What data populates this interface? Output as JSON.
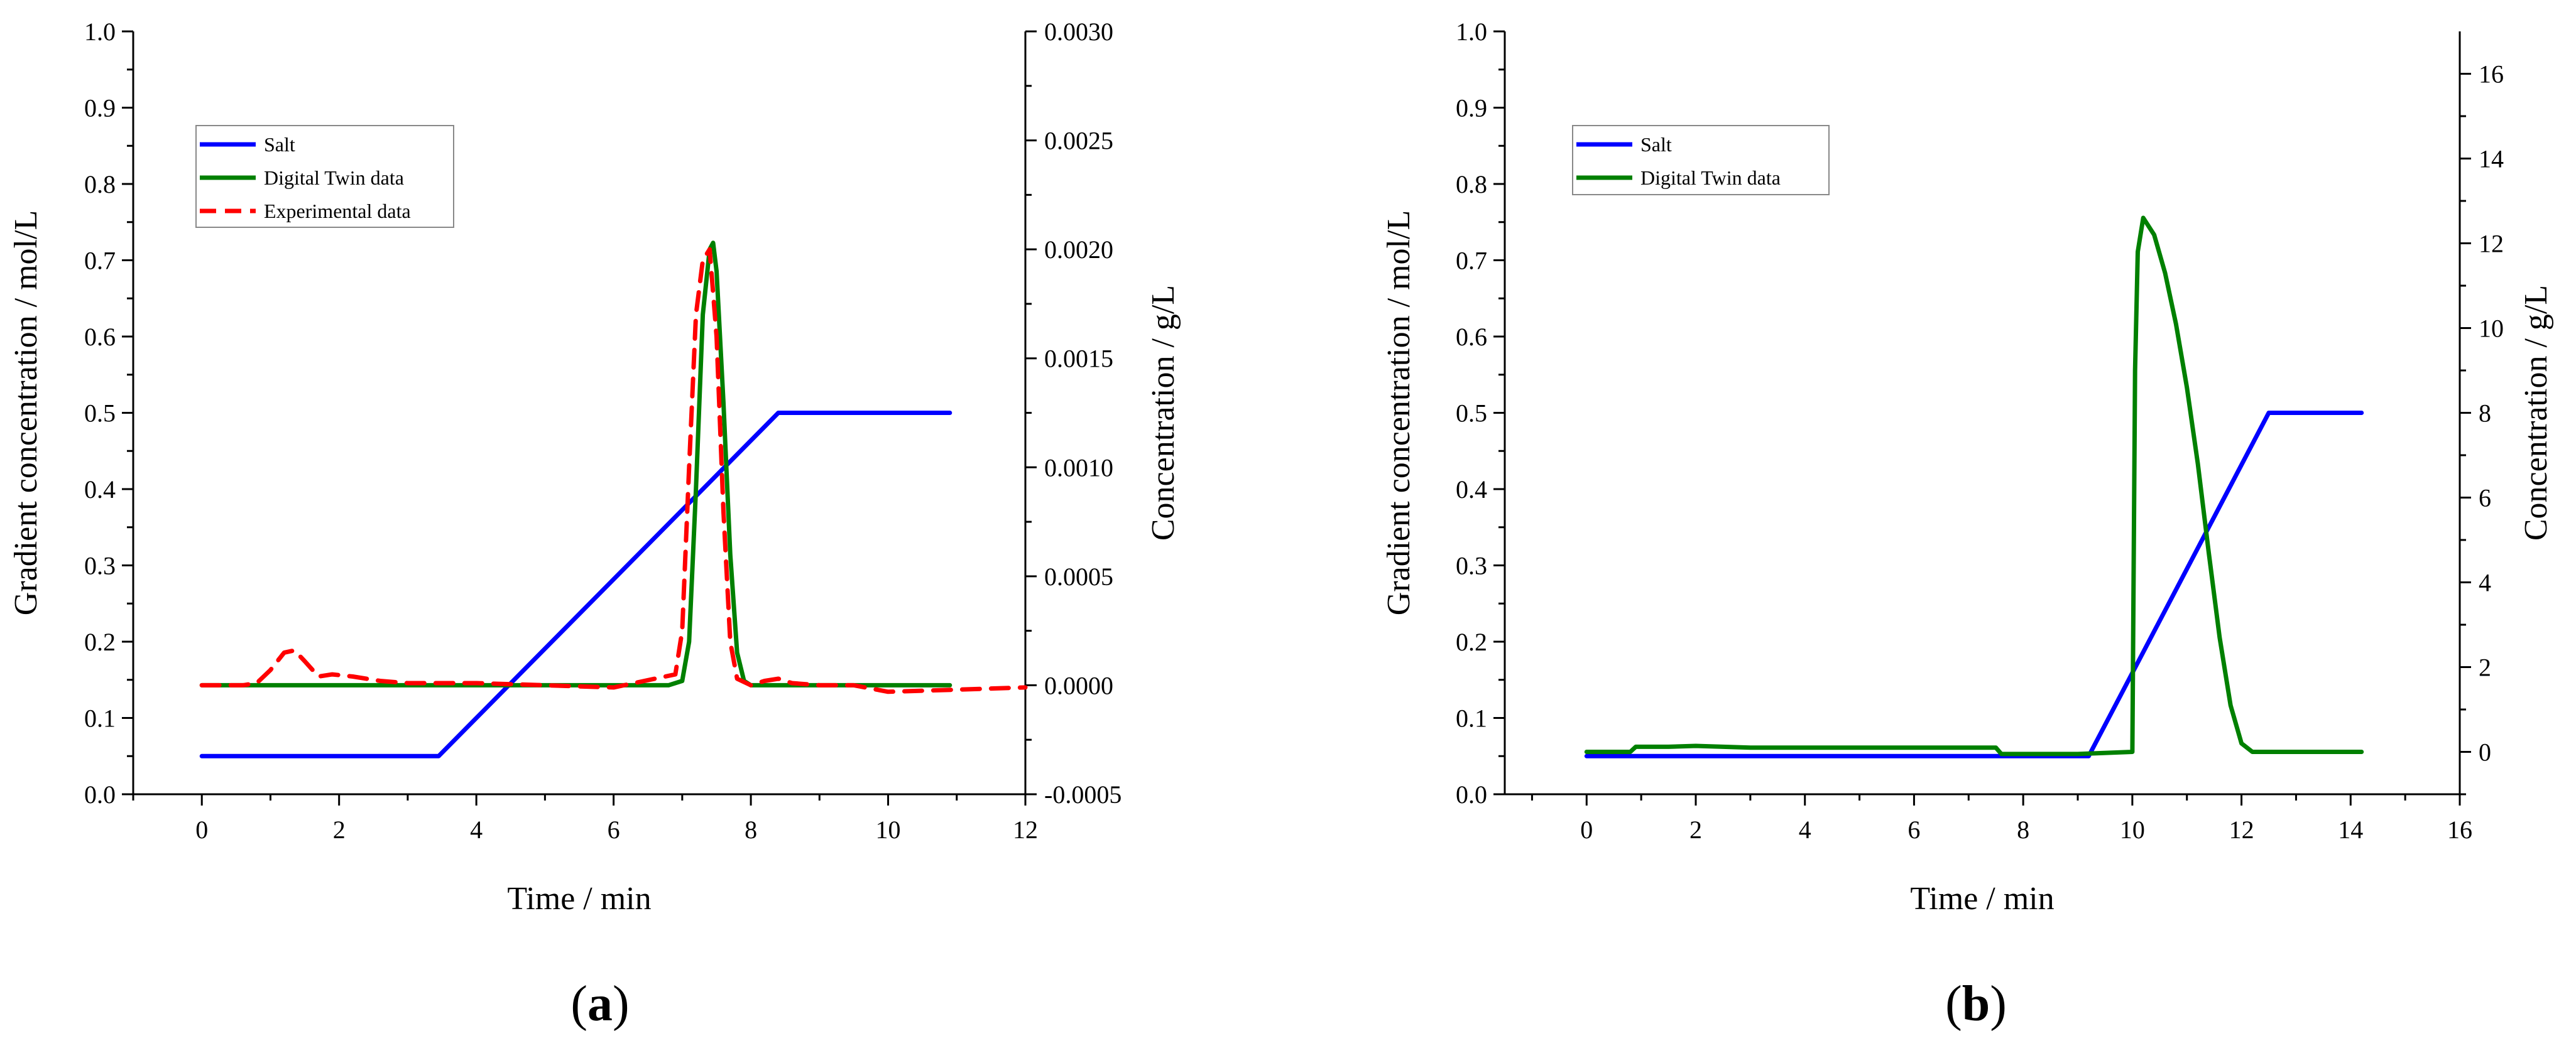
{
  "chart_data": [
    {
      "type": "line",
      "panel_label": "a",
      "xlabel": "Time / min",
      "ylabel": "Gradient concentration / mol/L",
      "y2label": "Concentration / g/L",
      "xlim": [
        -1,
        12
      ],
      "ylim": [
        0,
        1.0
      ],
      "y2lim": [
        -0.0005,
        0.003
      ],
      "x_ticks": [
        "0",
        "2",
        "4",
        "6",
        "8",
        "10",
        "12"
      ],
      "y_ticks": [
        "0.0",
        "0.1",
        "0.2",
        "0.3",
        "0.4",
        "0.5",
        "0.6",
        "0.7",
        "0.8",
        "0.9",
        "1.0"
      ],
      "y2_ticks": [
        "-0.0005",
        "0.0000",
        "0.0005",
        "0.0010",
        "0.0015",
        "0.0020",
        "0.0025",
        "0.0030"
      ],
      "legend_position": "top-left",
      "series": [
        {
          "name": "Salt",
          "axis": "left",
          "color": "#0000ff",
          "style": "solid",
          "x": [
            0,
            3.45,
            8.4,
            10.9
          ],
          "y": [
            0.05,
            0.05,
            0.5,
            0.5
          ]
        },
        {
          "name": "Digital Twin data",
          "axis": "right",
          "color": "#008000",
          "style": "solid",
          "x": [
            0,
            6.8,
            7.0,
            7.1,
            7.2,
            7.3,
            7.4,
            7.45,
            7.5,
            7.6,
            7.7,
            7.8,
            7.9,
            8.0,
            8.5,
            10.9
          ],
          "y": [
            0,
            0,
            2e-05,
            0.0002,
            0.0009,
            0.0017,
            0.002,
            0.00203,
            0.0019,
            0.0013,
            0.0006,
            0.00015,
            2e-05,
            0,
            0,
            0
          ]
        },
        {
          "name": "Experimental data",
          "axis": "right",
          "color": "#ff0000",
          "style": "dashed",
          "x": [
            0,
            0.6,
            0.8,
            1.0,
            1.2,
            1.35,
            1.5,
            1.7,
            1.9,
            2.2,
            2.6,
            3.0,
            4.0,
            5.0,
            6.0,
            6.9,
            7.0,
            7.1,
            7.2,
            7.3,
            7.4,
            7.5,
            7.6,
            7.7,
            7.8,
            8.0,
            8.2,
            8.4,
            8.6,
            9.0,
            9.5,
            10.0,
            11.0,
            12.0
          ],
          "y": [
            0,
            0,
            1e-05,
            7e-05,
            0.00015,
            0.00016,
            0.00011,
            4e-05,
            5e-05,
            4e-05,
            2e-05,
            1e-05,
            1e-05,
            0,
            -1e-05,
            5e-05,
            0.00025,
            0.001,
            0.0017,
            0.00195,
            0.002,
            0.0016,
            0.0008,
            0.0002,
            3e-05,
            0,
            2e-05,
            3e-05,
            1e-05,
            0,
            0,
            -3e-05,
            -2e-05,
            -1e-05
          ]
        }
      ]
    },
    {
      "type": "line",
      "panel_label": "b",
      "xlabel": "Time / min",
      "ylabel": "Gradient concentration / mol/L",
      "y2label": "Concentration / g/L",
      "xlim": [
        -1.5,
        16
      ],
      "ylim": [
        0,
        1.0
      ],
      "y2lim": [
        -1,
        17
      ],
      "x_ticks": [
        "0",
        "2",
        "4",
        "6",
        "8",
        "10",
        "12",
        "14",
        "16"
      ],
      "y_ticks": [
        "0.0",
        "0.1",
        "0.2",
        "0.3",
        "0.4",
        "0.5",
        "0.6",
        "0.7",
        "0.8",
        "0.9",
        "1.0"
      ],
      "y2_ticks": [
        "0",
        "2",
        "4",
        "6",
        "8",
        "10",
        "12",
        "14",
        "16"
      ],
      "legend_position": "top-left",
      "series": [
        {
          "name": "Salt",
          "axis": "left",
          "color": "#0000ff",
          "style": "solid",
          "x": [
            0,
            9.2,
            12.5,
            14.2
          ],
          "y": [
            0.05,
            0.05,
            0.5,
            0.5
          ]
        },
        {
          "name": "Digital Twin data",
          "axis": "right",
          "color": "#008000",
          "style": "solid",
          "x": [
            0,
            0.8,
            0.9,
            1.5,
            2.0,
            3.0,
            4.0,
            5.0,
            6.0,
            7.0,
            7.5,
            7.6,
            8.0,
            9.0,
            10.0,
            10.05,
            10.1,
            10.2,
            10.4,
            10.6,
            10.8,
            11.0,
            11.2,
            11.4,
            11.6,
            11.8,
            12.0,
            12.2,
            12.5,
            14.2
          ],
          "y": [
            0,
            0,
            0.12,
            0.12,
            0.14,
            0.1,
            0.1,
            0.1,
            0.1,
            0.1,
            0.1,
            -0.05,
            -0.05,
            -0.05,
            0,
            9.0,
            11.8,
            12.6,
            12.2,
            11.3,
            10.1,
            8.6,
            6.8,
            4.7,
            2.7,
            1.1,
            0.2,
            0,
            0,
            0
          ]
        }
      ]
    }
  ]
}
